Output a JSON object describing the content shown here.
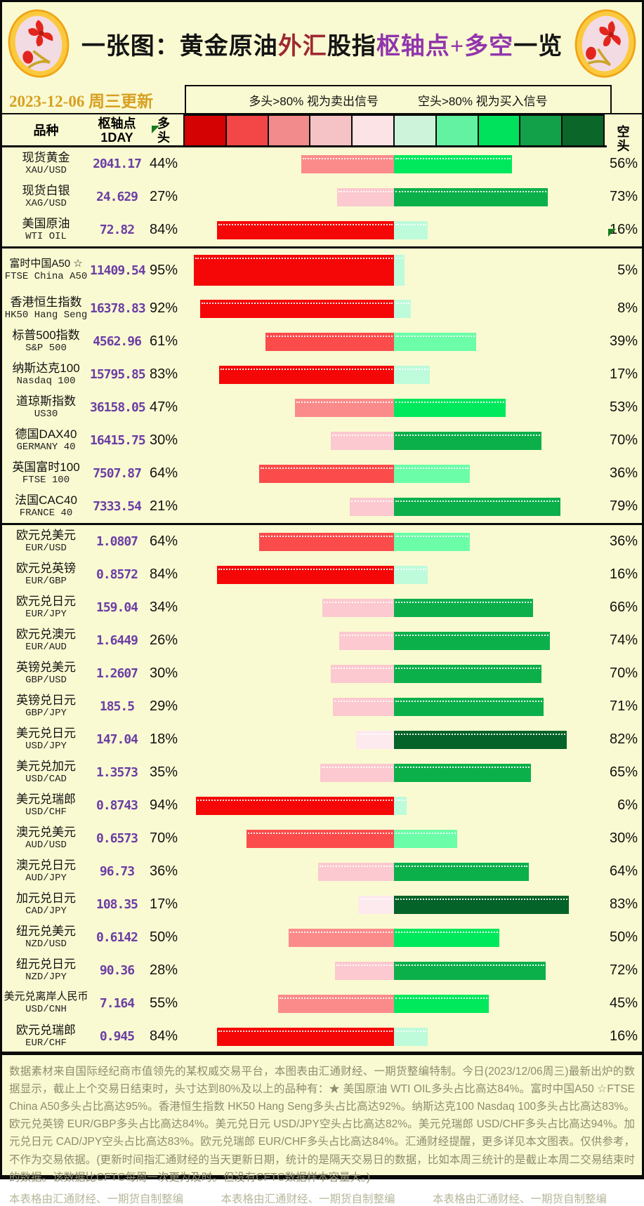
{
  "title": {
    "segments": [
      {
        "text": "一张图：黄金原油",
        "color": "#141414"
      },
      {
        "text": "外汇",
        "color": "#9e2a33"
      },
      {
        "text": "股指",
        "color": "#141414"
      },
      {
        "text": "枢轴点",
        "color": "#9135ad"
      },
      {
        "text": "+多空",
        "color": "#9135ad"
      },
      {
        "text": "一览",
        "color": "#141414"
      }
    ]
  },
  "update_date": "2023-12-06 周三更新",
  "legend": {
    "long_signal": "多头>80% 视为卖出信号",
    "short_signal": "空头>80% 视为买入信号"
  },
  "columns": {
    "symbol": "品种",
    "pivot": "枢轴点\n1DAY",
    "long": "多\n头",
    "short": "空\n头"
  },
  "scale_colors": [
    "#d40202",
    "#f34646",
    "#f28b8b",
    "#f5c3c5",
    "#fbe3e6",
    "#cdf3da",
    "#63f2a2",
    "#00e25c",
    "#12a048",
    "#0b6629"
  ],
  "bar_palette": {
    "long": [
      "#fdeaee",
      "#fbc9cf",
      "#fb8b8b",
      "#fb4b4b",
      "#f50707"
    ],
    "short": [
      "#bdfbdb",
      "#6bfda8",
      "#00e95d",
      "#0cb04b",
      "#046329"
    ]
  },
  "table": {
    "rows": [
      {
        "cn": "现货黄金",
        "en": "XAU/USD",
        "pivot": "2041.17",
        "long": 44,
        "short": 56
      },
      {
        "cn": "现货白银",
        "en": "XAG/USD",
        "pivot": "24.629",
        "long": 27,
        "short": 73
      },
      {
        "cn": "美国原油",
        "en": "WTI OIL",
        "pivot": "72.82",
        "long": 84,
        "short": 16,
        "group_end": true
      },
      {
        "cn": "富时中国A50 ☆",
        "en": "FTSE China A50",
        "pivot": "11409.54",
        "long": 95,
        "short": 5,
        "tall": true
      },
      {
        "cn": "香港恒生指数",
        "en": "HK50 Hang Seng",
        "pivot": "16378.83",
        "long": 92,
        "short": 8
      },
      {
        "cn": "标普500指数",
        "en": "S&P 500",
        "pivot": "4562.96",
        "long": 61,
        "short": 39
      },
      {
        "cn": "纳斯达克100",
        "en": "Nasdaq 100",
        "pivot": "15795.85",
        "long": 83,
        "short": 17
      },
      {
        "cn": "道琼斯指数",
        "en": "US30",
        "pivot": "36158.05",
        "long": 47,
        "short": 53
      },
      {
        "cn": "德国DAX40",
        "en": "GERMANY 40",
        "pivot": "16415.75",
        "long": 30,
        "short": 70
      },
      {
        "cn": "英国富时100",
        "en": "FTSE 100",
        "pivot": "7507.87",
        "long": 64,
        "short": 36
      },
      {
        "cn": "法国CAC40",
        "en": "FRANCE 40",
        "pivot": "7333.54",
        "long": 21,
        "short": 79,
        "group_end": true
      },
      {
        "cn": "欧元兑美元",
        "en": "EUR/USD",
        "pivot": "1.0807",
        "long": 64,
        "short": 36
      },
      {
        "cn": "欧元兑英镑",
        "en": "EUR/GBP",
        "pivot": "0.8572",
        "long": 84,
        "short": 16
      },
      {
        "cn": "欧元兑日元",
        "en": "EUR/JPY",
        "pivot": "159.04",
        "long": 34,
        "short": 66
      },
      {
        "cn": "欧元兑澳元",
        "en": "EUR/AUD",
        "pivot": "1.6449",
        "long": 26,
        "short": 74
      },
      {
        "cn": "英镑兑美元",
        "en": "GBP/USD",
        "pivot": "1.2607",
        "long": 30,
        "short": 70
      },
      {
        "cn": "英镑兑日元",
        "en": "GBP/JPY",
        "pivot": "185.5",
        "long": 29,
        "short": 71
      },
      {
        "cn": "美元兑日元",
        "en": "USD/JPY",
        "pivot": "147.04",
        "long": 18,
        "short": 82
      },
      {
        "cn": "美元兑加元",
        "en": "USD/CAD",
        "pivot": "1.3573",
        "long": 35,
        "short": 65
      },
      {
        "cn": "美元兑瑞郎",
        "en": "USD/CHF",
        "pivot": "0.8743",
        "long": 94,
        "short": 6
      },
      {
        "cn": "澳元兑美元",
        "en": "AUD/USD",
        "pivot": "0.6573",
        "long": 70,
        "short": 30
      },
      {
        "cn": "澳元兑日元",
        "en": "AUD/JPY",
        "pivot": "96.73",
        "long": 36,
        "short": 64
      },
      {
        "cn": "加元兑日元",
        "en": "CAD/JPY",
        "pivot": "108.35",
        "long": 17,
        "short": 83
      },
      {
        "cn": "纽元兑美元",
        "en": "NZD/USD",
        "pivot": "0.6142",
        "long": 50,
        "short": 50
      },
      {
        "cn": "纽元兑日元",
        "en": "NZD/JPY",
        "pivot": "90.36",
        "long": 28,
        "short": 72
      },
      {
        "cn": "美元兑离岸人民币",
        "en": "USD/CNH",
        "pivot": "7.164",
        "long": 55,
        "short": 45
      },
      {
        "cn": "欧元兑瑞郎",
        "en": "EUR/CHF",
        "pivot": "0.945",
        "long": 84,
        "short": 16,
        "group_end": true
      }
    ]
  },
  "chart_data": {
    "type": "bar",
    "title": "一张图：黄金原油外汇股指枢轴点+多空一览",
    "subtitle": "2023-12-06 周三更新",
    "layout": "diverging horizontal bars, long(红) left / short(绿) right of center, 0-100%",
    "categories": [
      "XAU/USD",
      "XAG/USD",
      "WTI OIL",
      "FTSE China A50",
      "HK50 Hang Seng",
      "S&P 500",
      "Nasdaq 100",
      "US30",
      "GERMANY 40",
      "FTSE 100",
      "FRANCE 40",
      "EUR/USD",
      "EUR/GBP",
      "EUR/JPY",
      "EUR/AUD",
      "GBP/USD",
      "GBP/JPY",
      "USD/JPY",
      "USD/CAD",
      "USD/CHF",
      "AUD/USD",
      "AUD/JPY",
      "CAD/JPY",
      "NZD/USD",
      "NZD/JPY",
      "USD/CNH",
      "EUR/CHF"
    ],
    "series": [
      {
        "name": "多头%",
        "values": [
          44,
          27,
          84,
          95,
          92,
          61,
          83,
          47,
          30,
          64,
          21,
          64,
          84,
          34,
          26,
          30,
          29,
          18,
          35,
          94,
          70,
          36,
          17,
          50,
          28,
          55,
          84
        ]
      },
      {
        "name": "空头%",
        "values": [
          56,
          73,
          16,
          5,
          8,
          39,
          17,
          53,
          70,
          36,
          79,
          36,
          16,
          66,
          74,
          70,
          71,
          82,
          65,
          6,
          30,
          64,
          83,
          50,
          72,
          45,
          16
        ]
      },
      {
        "name": "枢轴点1DAY",
        "values": [
          2041.17,
          24.629,
          72.82,
          11409.54,
          16378.83,
          4562.96,
          15795.85,
          36158.05,
          16415.75,
          7507.87,
          7333.54,
          1.0807,
          0.8572,
          159.04,
          1.6449,
          1.2607,
          185.5,
          147.04,
          1.3573,
          0.8743,
          0.6573,
          96.73,
          108.35,
          0.6142,
          90.36,
          7.164,
          0.945
        ]
      }
    ]
  },
  "footer": {
    "paragraph": "数据素材来自国际经纪商市值领先的某权威交易平台，本图表由汇通财经、一期货整编特制。今日(2023/12/06周三)最新出炉的数据显示，截止上个交易日结束时，头寸达到80%及以上的品种有：★ 美国原油 WTI OIL多头占比高达84%。富时中国A50 ☆FTSE China A50多头占比高达95%。香港恒生指数 HK50 Hang Seng多头占比高达92%。纳斯达克100 Nasdaq 100多头占比高达83%。欧元兑英镑 EUR/GBP多头占比高达84%。美元兑日元 USD/JPY空头占比高达82%。美元兑瑞郎 USD/CHF多头占比高达94%。加元兑日元 CAD/JPY空头占比高达83%。欧元兑瑞郎 EUR/CHF多头占比高达84%。汇通财经提醒，更多详见本文图表。仅供参考，不作为交易依据。(更新时间指汇通财经的当天更新日期，统计的是隔天交易日的数据，比如本周三统计的是截止本周二交易结束时的数据。该数据比CFTC每周一次更为及时。但没有CFTC数据样本容量大。)",
    "credits": [
      "本表格由汇通财经、一期货自制整编",
      "本表格由汇通财经、一期货自制整编",
      "本表格由汇通财经、一期货自制整编"
    ]
  }
}
